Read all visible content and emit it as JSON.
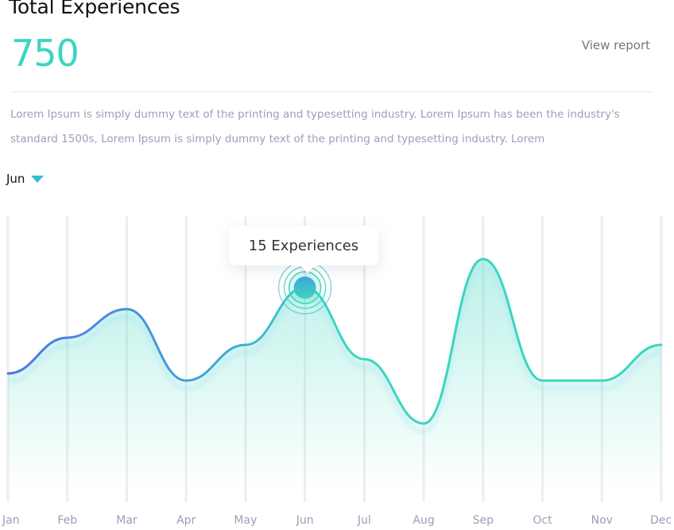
{
  "header": {
    "title": "Total Experiences",
    "total": "750",
    "view_report": "View report"
  },
  "description": "Lorem Ipsum is simply dummy text of the printing and typesetting industry. Lorem Ipsum has been the industry's standard 1500s, Lorem Ipsum is simply dummy text of the printing and typesetting industry. Lorem",
  "filter": {
    "selected_month": "Jun",
    "caret_icon": "caret-down-icon"
  },
  "tooltip": {
    "text": "15 Experiences"
  },
  "colors": {
    "accent_teal": "#3ad6bf",
    "accent_blue": "#4c7ee6",
    "caret": "#38b9d4"
  },
  "chart_data": {
    "type": "area",
    "categories": [
      "Jan",
      "Feb",
      "Mar",
      "Apr",
      "May",
      "Jun",
      "Jul",
      "Aug",
      "Sep",
      "Oct",
      "Nov",
      "Dec"
    ],
    "values": [
      9,
      11.5,
      13.5,
      8.5,
      11,
      15,
      10,
      5.5,
      17,
      8.5,
      8.5,
      11
    ],
    "highlight_index": 5,
    "ylim": [
      0,
      20
    ],
    "grid": "vertical"
  }
}
